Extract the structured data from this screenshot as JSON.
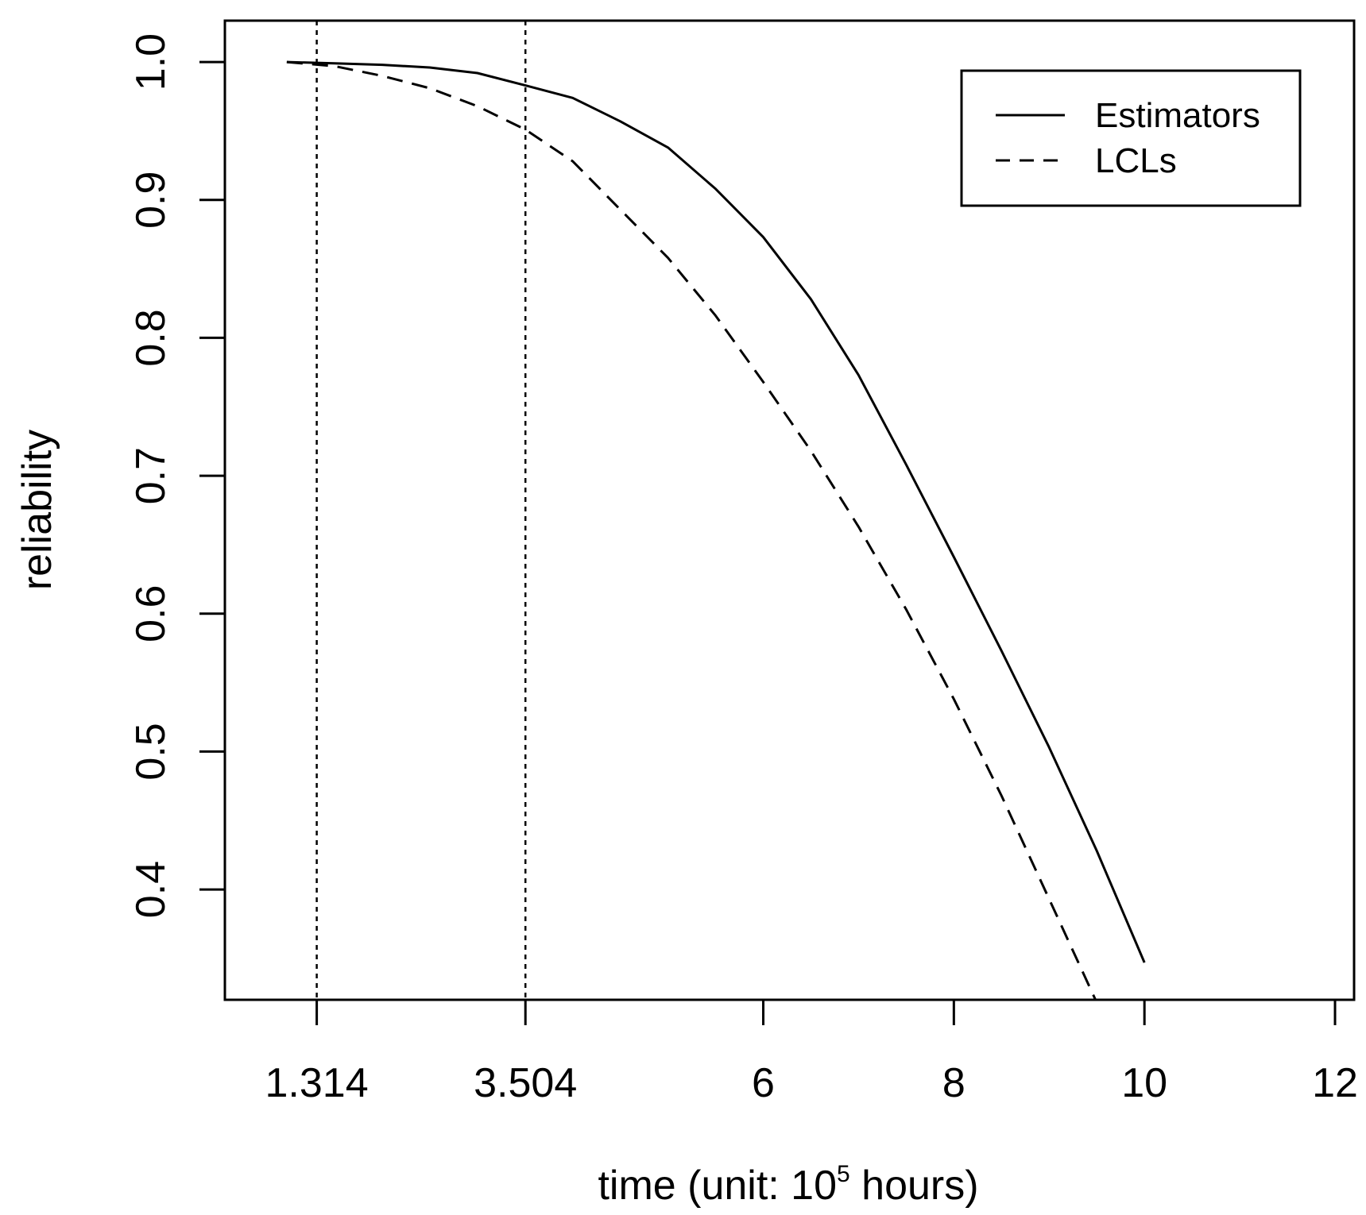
{
  "chart_data": {
    "type": "line",
    "title": "",
    "xlabel": {
      "prefix": "time (unit: 10",
      "superscript": "5",
      "suffix": " hours)"
    },
    "ylabel": "reliability",
    "xlim": [
      0.35,
      12.2
    ],
    "ylim": [
      0.32,
      1.03
    ],
    "x_ticks": [
      1.314,
      3.504,
      6,
      8,
      10,
      12
    ],
    "x_tick_labels": [
      "1.314",
      "3.504",
      "6",
      "8",
      "10",
      "12"
    ],
    "y_ticks": [
      0.4,
      0.5,
      0.6,
      0.7,
      0.8,
      0.9,
      1.0
    ],
    "y_tick_labels": [
      "0.4",
      "0.5",
      "0.6",
      "0.7",
      "0.8",
      "0.9",
      "1.0"
    ],
    "reference_lines": [
      1.314,
      3.504
    ],
    "grid": false,
    "legend_position": "top-right",
    "series": [
      {
        "name": "Estimators",
        "line_style": "solid",
        "color": "#000000",
        "points": [
          [
            1.0,
            1.0
          ],
          [
            1.5,
            0.999
          ],
          [
            2.0,
            0.998
          ],
          [
            2.5,
            0.996
          ],
          [
            3.0,
            0.992
          ],
          [
            3.504,
            0.983
          ],
          [
            4.0,
            0.974
          ],
          [
            4.5,
            0.957
          ],
          [
            5.0,
            0.938
          ],
          [
            5.5,
            0.908
          ],
          [
            6.0,
            0.873
          ],
          [
            6.5,
            0.828
          ],
          [
            7.0,
            0.773
          ],
          [
            7.5,
            0.708
          ],
          [
            8.0,
            0.641
          ],
          [
            8.5,
            0.573
          ],
          [
            9.0,
            0.503
          ],
          [
            9.5,
            0.428
          ],
          [
            10.0,
            0.347
          ]
        ]
      },
      {
        "name": "LCLs",
        "line_style": "dashed",
        "color": "#000000",
        "points": [
          [
            1.0,
            1.0
          ],
          [
            1.5,
            0.997
          ],
          [
            2.0,
            0.99
          ],
          [
            2.5,
            0.981
          ],
          [
            3.0,
            0.968
          ],
          [
            3.504,
            0.951
          ],
          [
            4.0,
            0.928
          ],
          [
            4.5,
            0.893
          ],
          [
            5.0,
            0.858
          ],
          [
            5.5,
            0.816
          ],
          [
            6.0,
            0.768
          ],
          [
            6.5,
            0.718
          ],
          [
            7.0,
            0.663
          ],
          [
            7.5,
            0.603
          ],
          [
            8.0,
            0.538
          ],
          [
            8.5,
            0.468
          ],
          [
            9.0,
            0.393
          ],
          [
            9.5,
            0.318
          ]
        ]
      }
    ]
  }
}
